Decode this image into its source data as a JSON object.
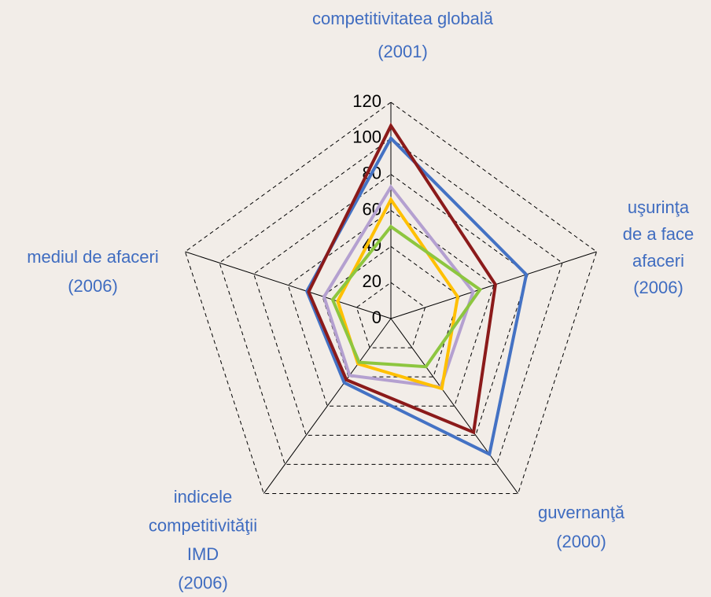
{
  "chart_data": {
    "type": "radar",
    "categories": [
      [
        "competitivitatea globală",
        "(2001)"
      ],
      [
        "uşurinţa",
        "de a face",
        "afaceri",
        "(2006)"
      ],
      [
        "guvernanţă",
        "(2000)"
      ],
      [
        "indicele",
        "competitivităţii",
        "IMD",
        "(2006)"
      ],
      [
        "mediul de afaceri",
        "(2006)"
      ]
    ],
    "series": [
      {
        "color": "#4472c4",
        "values": [
          100,
          79,
          93,
          44,
          49
        ]
      },
      {
        "color": "#8b1a1a",
        "values": [
          107,
          61,
          78,
          42,
          48
        ]
      },
      {
        "color": "#b4a0d0",
        "values": [
          73,
          48,
          47,
          39,
          39
        ]
      },
      {
        "color": "#ffc000",
        "values": [
          66,
          39,
          48,
          31,
          31
        ]
      },
      {
        "color": "#8dc63f",
        "values": [
          51,
          52,
          33,
          30,
          34
        ]
      }
    ],
    "ylim": [
      0,
      120
    ],
    "yticks": [
      0,
      20,
      40,
      60,
      80,
      100,
      120
    ],
    "grid": true,
    "label_color": "#3f6cc0"
  }
}
